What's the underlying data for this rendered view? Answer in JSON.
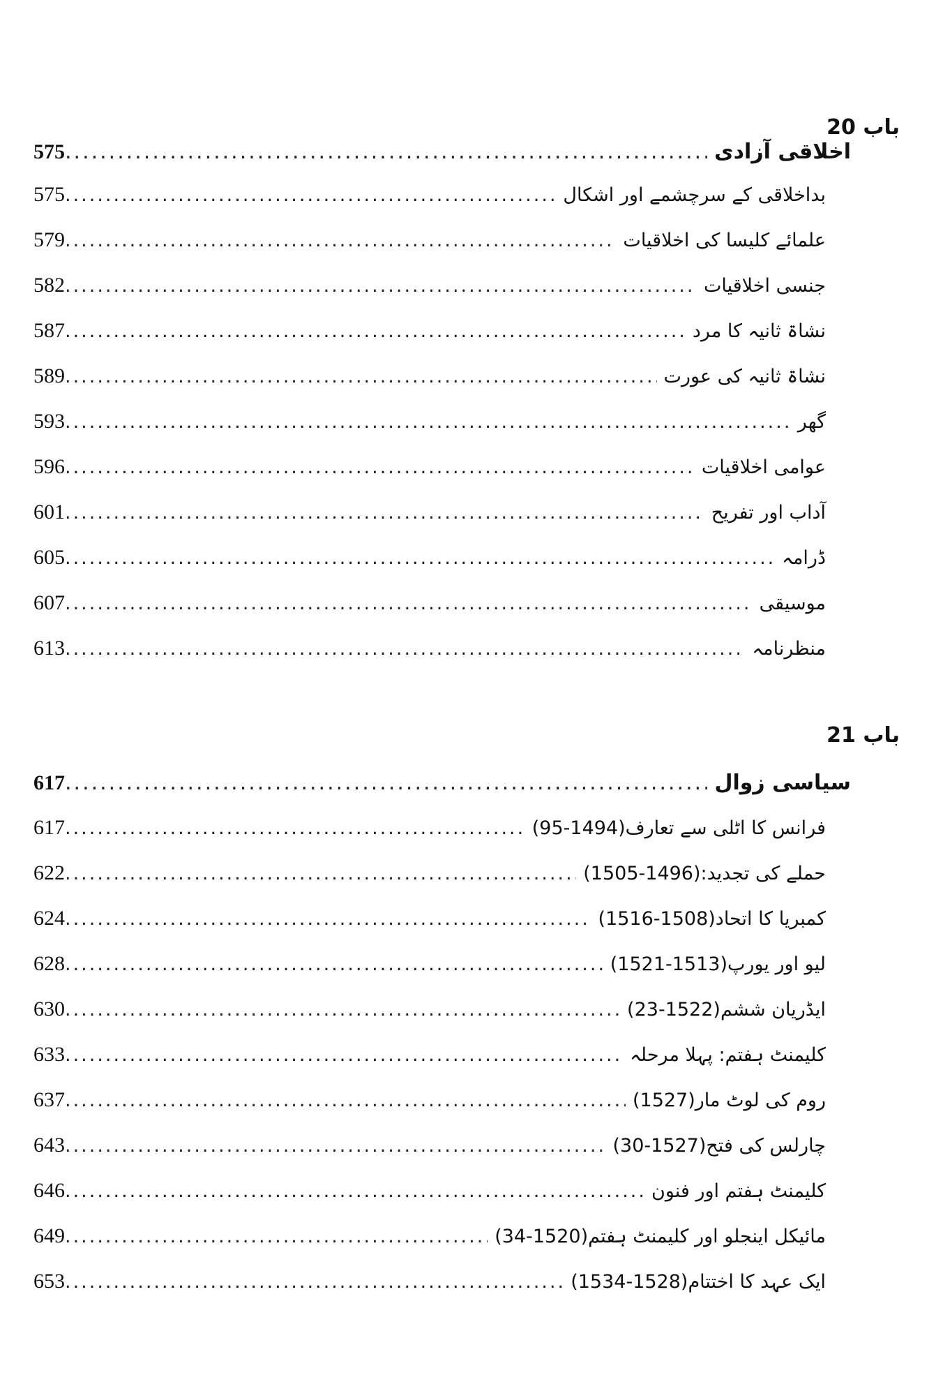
{
  "sections": [
    {
      "chapter": "باب 20",
      "heading": {
        "title": "اخلاقی آزادی",
        "page": "575"
      },
      "entries": [
        {
          "title": "بداخلاقی کے سرچشمے اور اشکال",
          "page": "575"
        },
        {
          "title": "علمائے کلیسا کی اخلاقیات",
          "page": "579"
        },
        {
          "title": "جنسی اخلاقیات",
          "page": "582"
        },
        {
          "title": "نشاۃ ثانیہ کا مرد",
          "page": "587"
        },
        {
          "title": "نشاۃ ثانیہ کی عورت",
          "page": "589"
        },
        {
          "title": "گھر",
          "page": "593"
        },
        {
          "title": "عوامی اخلاقیات",
          "page": "596"
        },
        {
          "title": "آداب اور تفریح",
          "page": "601"
        },
        {
          "title": "ڈرامہ",
          "page": "605"
        },
        {
          "title": "موسیقی",
          "page": "607"
        },
        {
          "title": "منظرنامہ",
          "page": "613"
        }
      ]
    },
    {
      "chapter": "باب 21",
      "heading": {
        "title": "سیاسی زوال",
        "page": "617"
      },
      "entries": [
        {
          "title": "فرانس کا اٹلی سے تعارف(1494-95)",
          "page": "617"
        },
        {
          "title": "حملے کی تجدید:(1496-1505)",
          "page": "622"
        },
        {
          "title": "کمبریا کا اتحاد(1508-1516)",
          "page": "624"
        },
        {
          "title": "لیو اور یورپ(1513-1521)",
          "page": "628"
        },
        {
          "title": "ایڈریان ششم(1522-23)",
          "page": "630"
        },
        {
          "title": "کلیمنٹ ہفتم: پہلا مرحلہ",
          "page": "633"
        },
        {
          "title": "روم کی لوٹ مار(1527)",
          "page": "637"
        },
        {
          "title": "چارلس کی فتح(1527-30)",
          "page": "643"
        },
        {
          "title": "کلیمنٹ ہفتم اور فنون",
          "page": "646"
        },
        {
          "title": "مائیکل اینجلو اور کلیمنٹ ہفتم(1520-34)",
          "page": "649"
        },
        {
          "title": "ایک عہد کا اختتام(1528-1534)",
          "page": "653"
        }
      ]
    }
  ]
}
